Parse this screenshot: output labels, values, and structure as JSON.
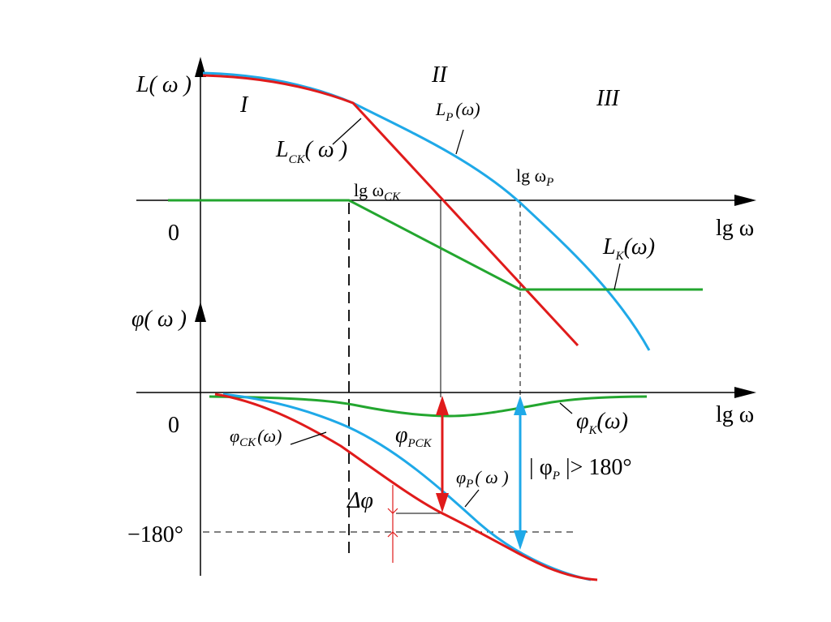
{
  "colors": {
    "red": "#e01b1b",
    "blue": "#1fa9e8",
    "green": "#23a62f",
    "black": "#000000"
  },
  "regions": {
    "r1": "I",
    "r2": "II",
    "r3": "III"
  },
  "top_axis": {
    "y_label": "L( ω )",
    "x_label": "lg ω",
    "zero": "0"
  },
  "bottom_axis": {
    "y_label": "φ( ω )",
    "x_label": "lg ω",
    "zero": "0",
    "minus180": "−180°"
  },
  "curve_labels": {
    "lp_main": "L",
    "lp_sub": "P",
    "lp_tail": "(ω)",
    "lsk_main": "L",
    "lsk_sub": "CK",
    "lsk_tail": "( ω )",
    "lk_main": "L",
    "lk_sub": "K",
    "lk_tail": "(ω)",
    "wsk_main": "lg ω",
    "wsk_sub": "CK",
    "wp_main": "lg ω",
    "wp_sub": "P",
    "phisk_main": "φ",
    "phisk_sub": "CK",
    "phisk_tail": "(ω)",
    "phirsk_main": "φ",
    "phirsk_sub": "PCK",
    "phip_main": "φ",
    "phip_sub": "P",
    "phip_tail": "( ω )",
    "phik_main": "φ",
    "phik_sub": "K",
    "phik_tail": "(ω)",
    "phip_abs_pre": "| φ",
    "phip_abs_sub": "P",
    "phip_abs_tail": " |> 180°",
    "dphi": "Δφ"
  }
}
